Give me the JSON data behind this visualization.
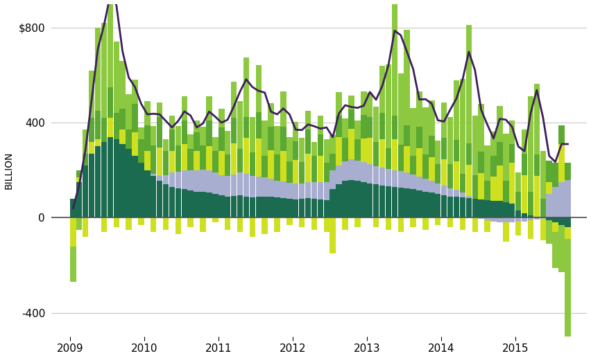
{
  "title": "",
  "ylabel": "BILLION",
  "xlabel": "",
  "ylim": [
    -500,
    900
  ],
  "yticks": [
    -400,
    0,
    400,
    800
  ],
  "ytick_labels": [
    "-400",
    "0",
    "400",
    "$800"
  ],
  "xlim_start": 2008.75,
  "xlim_end": 2015.97,
  "xtick_positions": [
    2009,
    2010,
    2011,
    2012,
    2013,
    2014,
    2015
  ],
  "colors": {
    "dark_teal": "#1b6b50",
    "light_purple": "#a8aed0",
    "yellow_green": "#cfe020",
    "medium_green": "#5ba832",
    "light_green": "#8cc840",
    "purple_line": "#3d1f5c",
    "zero_line": "#505050"
  },
  "background_color": "#ffffff",
  "grid_color": "#c8c8c8"
}
